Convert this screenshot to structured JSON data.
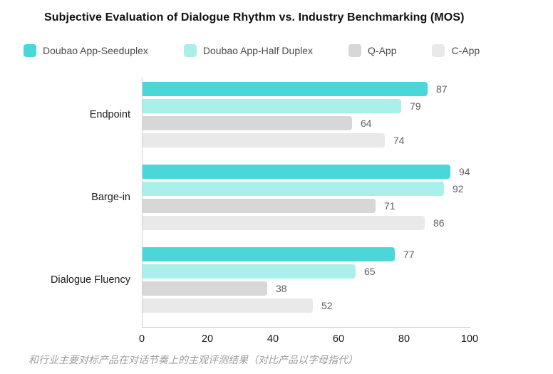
{
  "page": {
    "title": "Subjective Evaluation of Dialogue Rhythm vs. Industry Benchmarking (MOS)",
    "footnote": "和行业主要对标产品在对话节奏上的主观评测结果（对比产品以字母指代）"
  },
  "colors": {
    "axis_line": "#d2d2d2",
    "value_label": "#5f5f5f",
    "category_label": "#1c1c1c",
    "title_text": "#0f0f0f",
    "footnote_text": "#9c9c9c"
  },
  "chart_data": {
    "type": "bar",
    "orientation": "horizontal",
    "title": "Subjective Evaluation of Dialogue Rhythm vs. Industry Benchmarking (MOS)",
    "categories": [
      "Endpoint",
      "Barge-in",
      "Dialogue Fluency"
    ],
    "series": [
      {
        "name": "Doubao App-Seeduplex",
        "color": "#4bd7d9",
        "values": [
          87,
          94,
          77
        ]
      },
      {
        "name": "Doubao App-Half Duplex",
        "color": "#a9efea",
        "values": [
          79,
          92,
          65
        ]
      },
      {
        "name": "Q-App",
        "color": "#d7d7d7",
        "values": [
          64,
          71,
          38
        ]
      },
      {
        "name": "C-App",
        "color": "#e9e9e9",
        "values": [
          74,
          86,
          52
        ]
      }
    ],
    "xlim": [
      0,
      100
    ],
    "x_ticks": [
      0,
      20,
      40,
      60,
      80,
      100
    ],
    "grid": false,
    "legend_position": "top",
    "value_labels": true
  }
}
